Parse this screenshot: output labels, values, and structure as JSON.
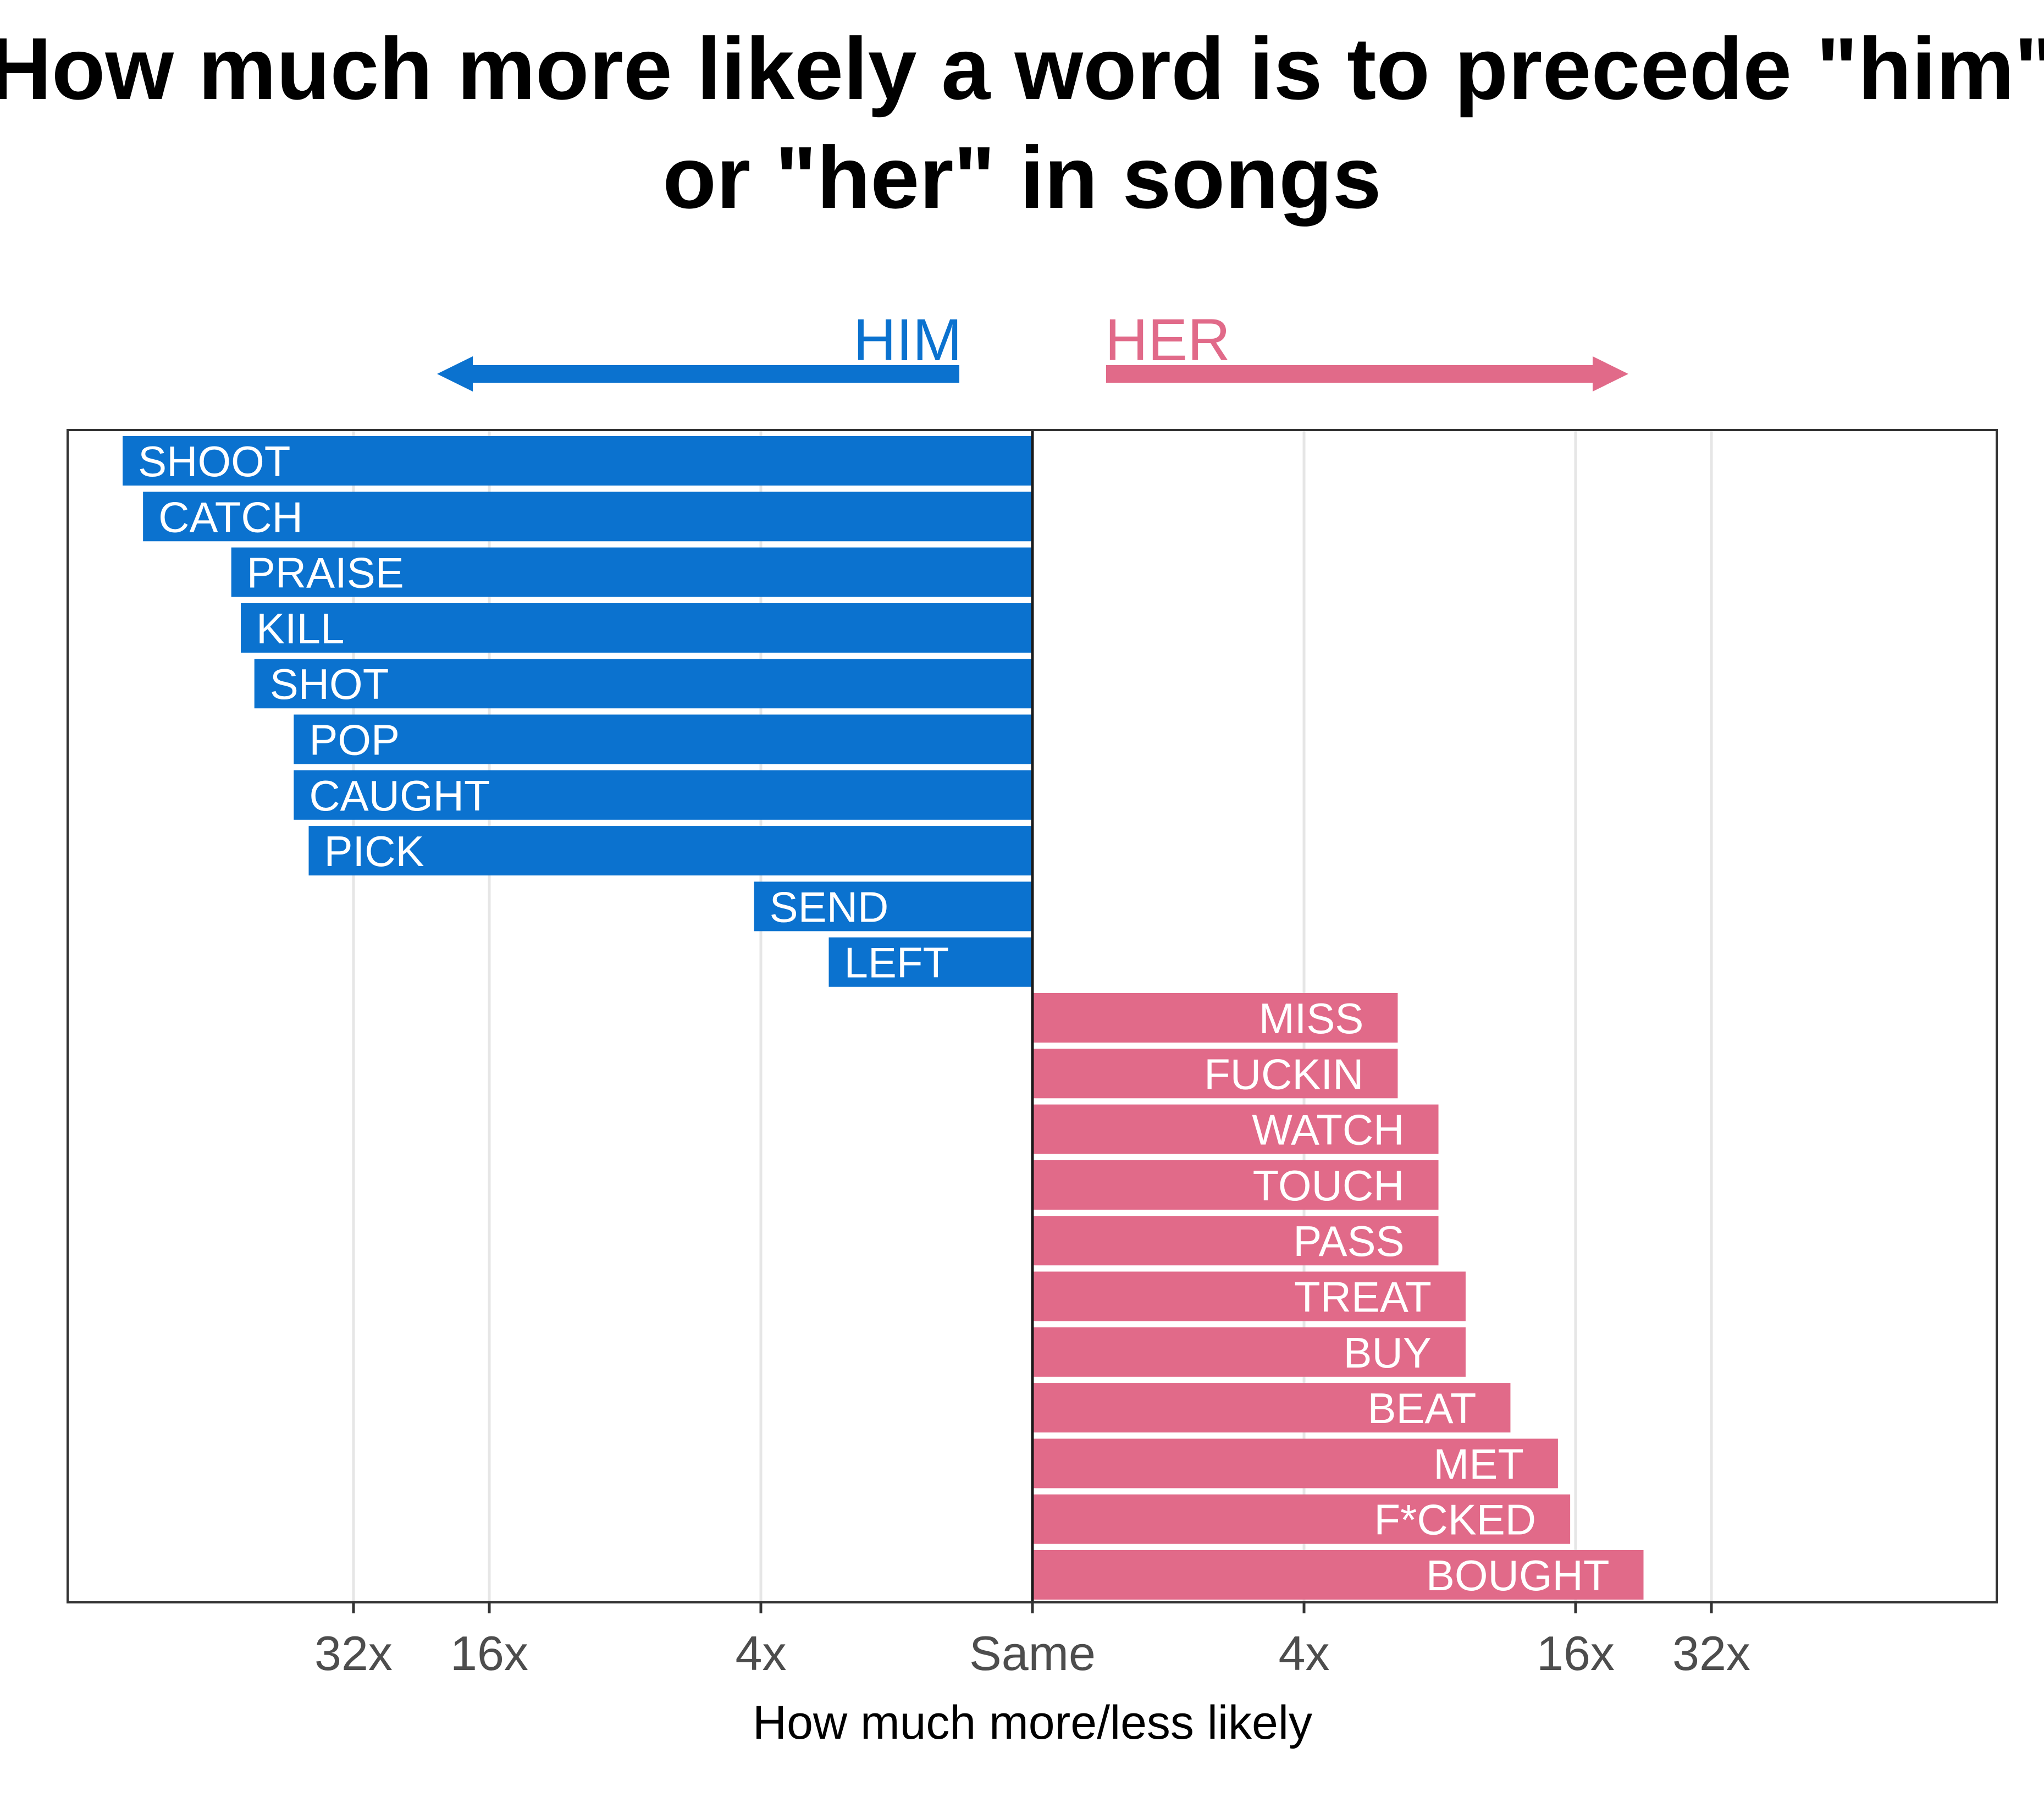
{
  "chart_data": {
    "type": "bar",
    "orientation": "horizontal",
    "title": "How much more likely a word is to precede \"him\" or \"her\" in songs",
    "title_lines": [
      "How much more likely a word is to precede \"him\"",
      "or \"her\" in songs"
    ],
    "xlabel": "How much more/less likely",
    "ylabel": "",
    "x_scale": "log2 ratio, centered at Same",
    "xlim": [
      -6,
      6
    ],
    "x_ticks": [
      {
        "value": -5,
        "label": "32x"
      },
      {
        "value": -4,
        "label": "16x"
      },
      {
        "value": -2,
        "label": "4x"
      },
      {
        "value": 0,
        "label": "Same"
      },
      {
        "value": 2,
        "label": "4x"
      },
      {
        "value": 4,
        "label": "16x"
      },
      {
        "value": 5,
        "label": "32x"
      }
    ],
    "grid": "vertical major lines",
    "legend": {
      "placement": "top, arrows pointing outward",
      "him": {
        "label": "HIM",
        "color": "#0b72cf",
        "direction": "left"
      },
      "her": {
        "label": "HER",
        "color": "#e16a89",
        "direction": "right"
      }
    },
    "series": [
      {
        "name": "HIM",
        "color": "#0b72cf",
        "bars": [
          {
            "word": "SHOOT",
            "value": -6.7
          },
          {
            "word": "CATCH",
            "value": -6.55
          },
          {
            "word": "PRAISE",
            "value": -5.9
          },
          {
            "word": "KILL",
            "value": -5.83
          },
          {
            "word": "SHOT",
            "value": -5.73
          },
          {
            "word": "POP",
            "value": -5.44
          },
          {
            "word": "CAUGHT",
            "value": -5.44
          },
          {
            "word": "PICK",
            "value": -5.33
          },
          {
            "word": "SEND",
            "value": -2.05
          },
          {
            "word": "LEFT",
            "value": -1.5
          }
        ]
      },
      {
        "name": "HER",
        "color": "#e16a89",
        "bars": [
          {
            "word": "MISS",
            "value": 2.69
          },
          {
            "word": "FUCKIN",
            "value": 2.69
          },
          {
            "word": "WATCH",
            "value": 2.99
          },
          {
            "word": "TOUCH",
            "value": 2.99
          },
          {
            "word": "PASS",
            "value": 2.99
          },
          {
            "word": "TREAT",
            "value": 3.19
          },
          {
            "word": "BUY",
            "value": 3.19
          },
          {
            "word": "BEAT",
            "value": 3.52
          },
          {
            "word": "MET",
            "value": 3.87
          },
          {
            "word": "F*CKED",
            "value": 3.96
          },
          {
            "word": "BOUGHT",
            "value": 4.5
          }
        ]
      }
    ]
  },
  "colors": {
    "him": "#0b72cf",
    "her": "#e16a89",
    "grid": "#e6e6e6",
    "frame": "#333333",
    "tick_text": "#4d4d4d"
  }
}
